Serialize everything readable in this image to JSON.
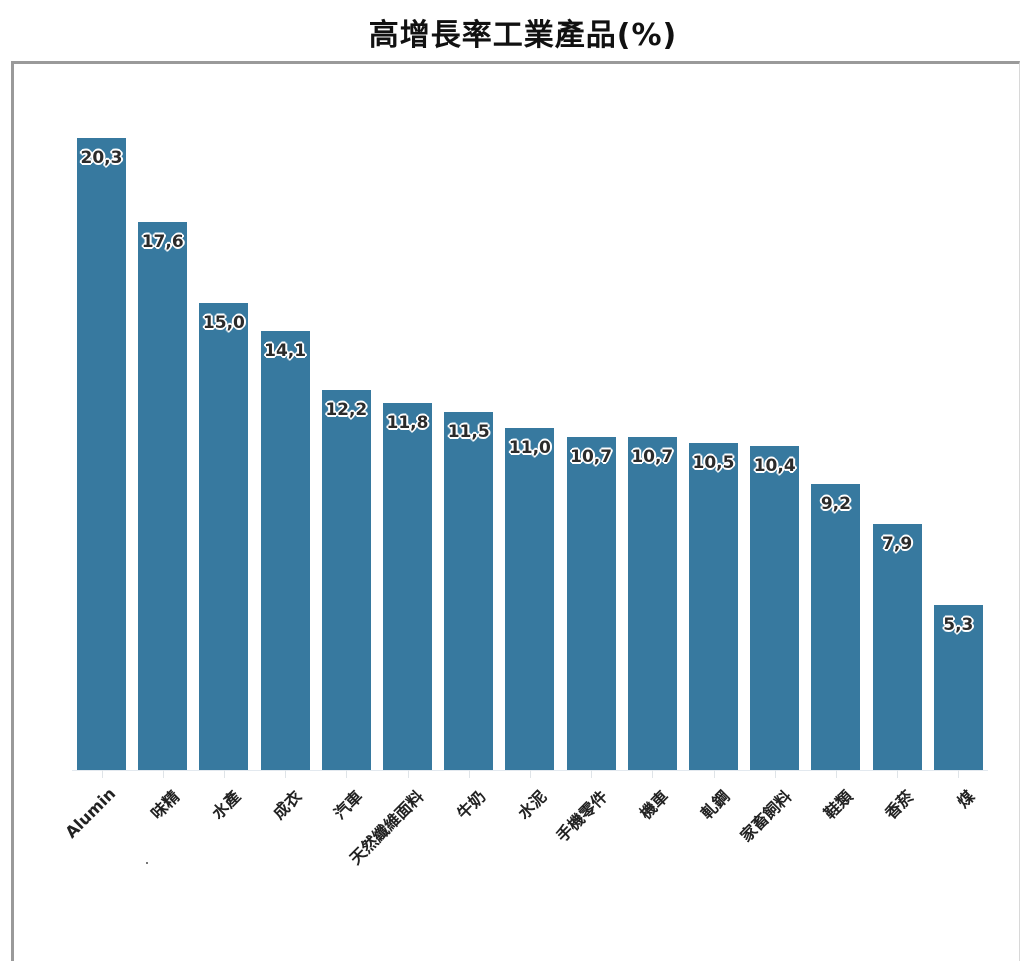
{
  "title": "高增長率工業產品(%)",
  "chart_data": {
    "type": "bar",
    "title": "高增長率工業產品(%)",
    "xlabel": "",
    "ylabel": "",
    "ylim": [
      0,
      21
    ],
    "grid": false,
    "legend": null,
    "bar_color": "#37799f",
    "categories": [
      "Alumin",
      "味精",
      "水產",
      "成衣",
      "汽車",
      "天然纖維面料",
      "牛奶",
      "水泥",
      "手機零件",
      "機車",
      "軋鋼",
      "家畜飼料",
      "鞋類",
      "香菸",
      "煤"
    ],
    "values": [
      20.3,
      17.6,
      15.0,
      14.1,
      12.2,
      11.8,
      11.5,
      11.0,
      10.7,
      10.7,
      10.5,
      10.4,
      9.2,
      7.9,
      5.3
    ],
    "data_labels": [
      "20,3",
      "17,6",
      "15,0",
      "14,1",
      "12,2",
      "11,8",
      "11,5",
      "11,0",
      "10,7",
      "10,7",
      "10,5",
      "10,4",
      "9,2",
      "7,9",
      "5,3"
    ]
  }
}
